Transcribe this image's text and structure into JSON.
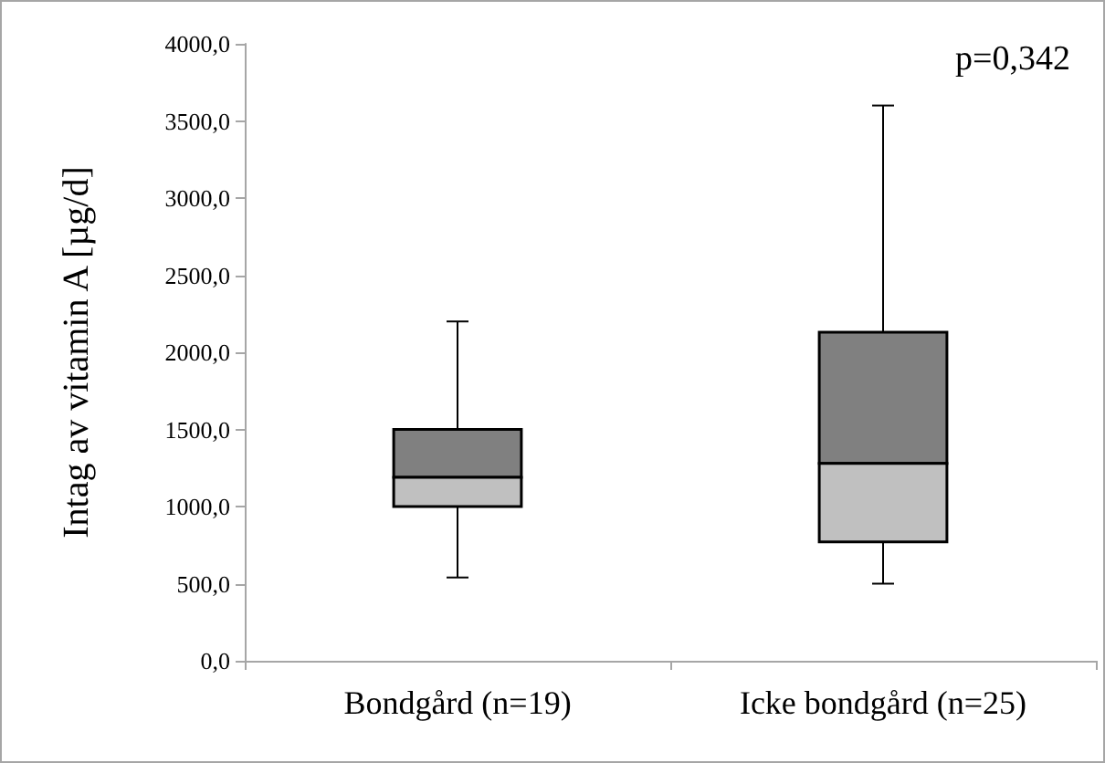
{
  "chart_data": {
    "type": "box",
    "ylabel": "Intag av vitamin A [µg/d]",
    "categories": [
      "Bondgård (n=19)",
      "Icke bondgård (n=25)"
    ],
    "boxes": [
      {
        "low": 540,
        "q1": 1000,
        "median": 1190,
        "q3": 1500,
        "high": 2200
      },
      {
        "low": 500,
        "q1": 770,
        "median": 1280,
        "q3": 2130,
        "high": 3600
      }
    ],
    "color": "#c0c0c0",
    "ylim": [
      0,
      4000
    ],
    "yticks": [
      {
        "value": 0,
        "label": "0,0"
      },
      {
        "value": 500,
        "label": "500,0"
      },
      {
        "value": 1000,
        "label": "1000,0"
      },
      {
        "value": 1500,
        "label": "1500,0"
      },
      {
        "value": 2000,
        "label": "2000,0"
      },
      {
        "value": 2500,
        "label": "2500,0"
      },
      {
        "value": 3000,
        "label": "3000,0"
      },
      {
        "value": 3500,
        "label": "3500,0"
      },
      {
        "value": 4000,
        "label": "4000,0"
      }
    ],
    "annotations": [
      "p=0,342"
    ],
    "grid": false
  }
}
